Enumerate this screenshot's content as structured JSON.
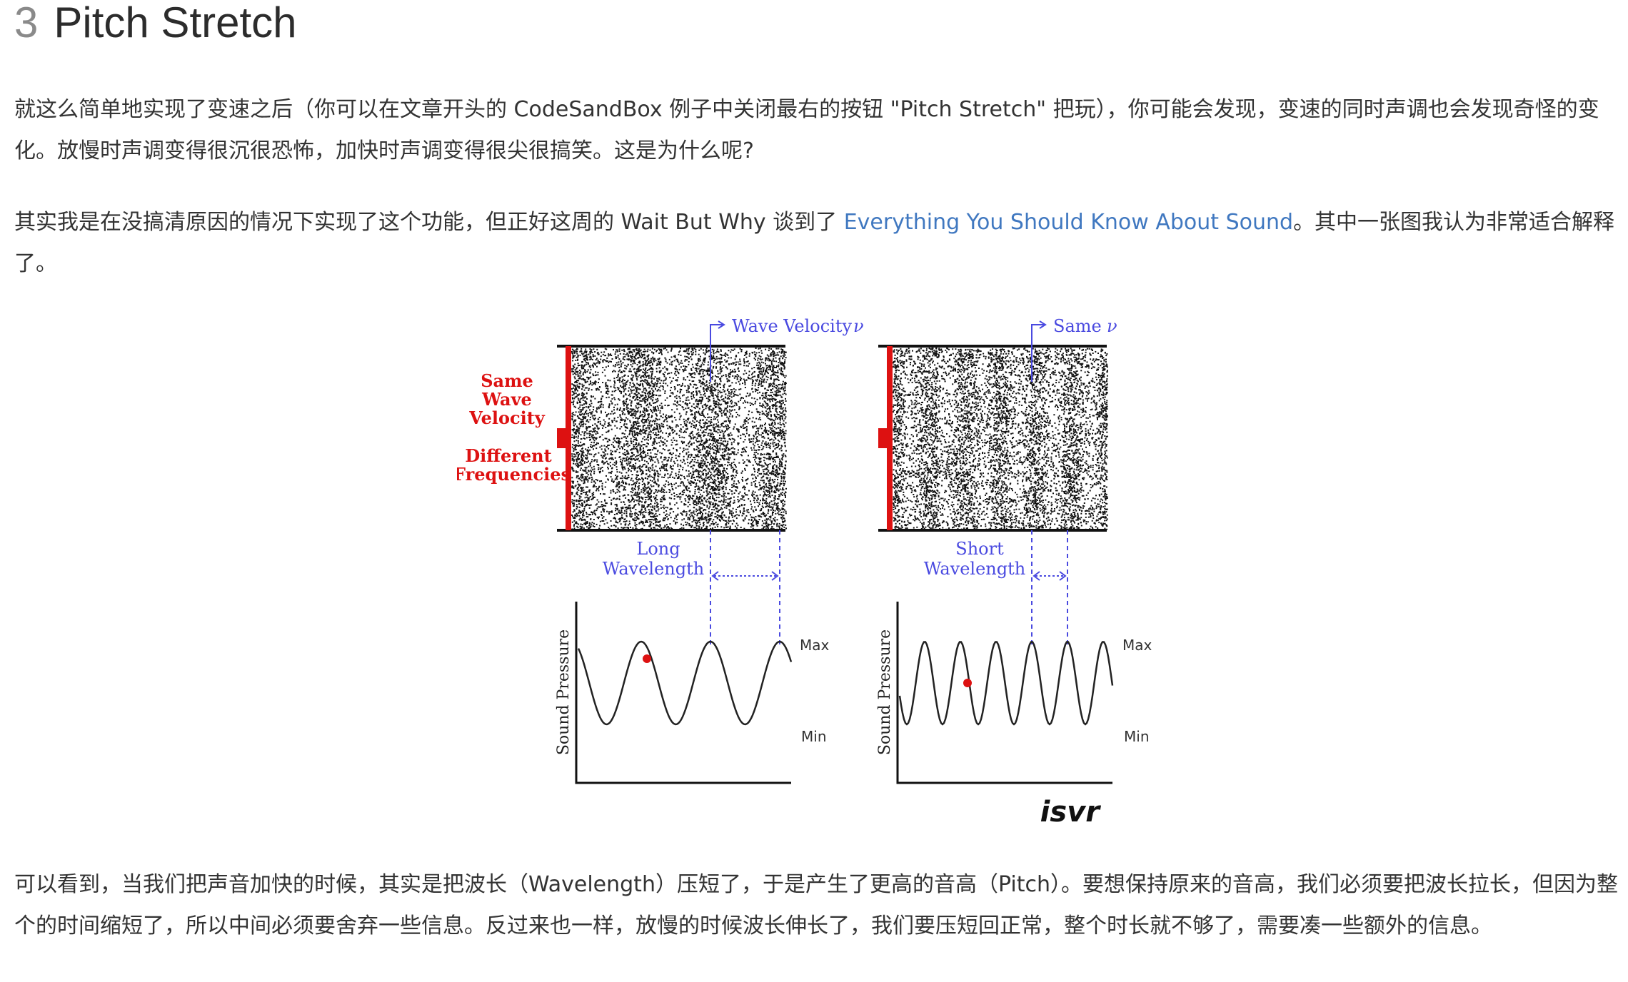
{
  "heading": {
    "number": "3",
    "title": "Pitch Stretch"
  },
  "paragraph1": {
    "text": "就这么简单地实现了变速之后（你可以在文章开头的 CodeSandBox 例子中关闭最右的按钮 \"Pitch Stretch\" 把玩），你可能会发现，变速的同时声调也会发现奇怪的变化。放慢时声调变得很沉很恐怖，加快时声调变得很尖很搞笑。这是为什么呢?"
  },
  "paragraph2": {
    "before_link": "其实我是在没搞清原因的情况下实现了这个功能，但正好这周的 Wait But Why 谈到了 ",
    "link_text": "Everything You Should Know About Sound",
    "after_link": "。其中一张图我认为非常适合解释了。"
  },
  "figure": {
    "left_panel": {
      "velocity_label": "Wave Velocity",
      "velocity_symbol": "ν",
      "side_label_line1": "Same",
      "side_label_line2": "Wave",
      "side_label_line3": "Velocity",
      "side_label_line4": "Different",
      "side_label_line5": "Frequencies",
      "wavelength_line1": "Long",
      "wavelength_line2": "Wavelength",
      "y_axis_label": "Sound Pressure",
      "max_label": "Max",
      "min_label": "Min"
    },
    "right_panel": {
      "velocity_label": "Same",
      "velocity_symbol": "ν",
      "wavelength_line1": "Short",
      "wavelength_line2": "Wavelength",
      "y_axis_label": "Sound Pressure",
      "max_label": "Max",
      "min_label": "Min"
    },
    "watermark": "isvr",
    "colors": {
      "blue": "#4a4ae0",
      "red": "#dd1111",
      "black": "#111111"
    }
  },
  "paragraph3": {
    "text": "可以看到，当我们把声音加快的时候，其实是把波长（Wavelength）压短了，于是产生了更高的音高（Pitch）。要想保持原来的音高，我们必须要把波长拉长，但因为整个的时间缩短了，所以中间必须要舍弃一些信息。反过来也一样，放慢的时候波长伸长了，我们要压短回正常，整个时长就不够了，需要凑一些额外的信息。"
  }
}
